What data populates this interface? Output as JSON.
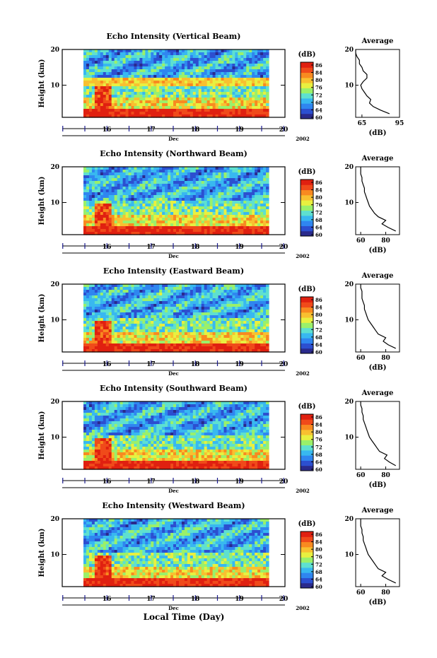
{
  "xlabel": "Local Time (Day)",
  "colorbar": {
    "unit": "(dB)",
    "ticks": [
      "86",
      "84",
      "80",
      "76",
      "72",
      "68",
      "64",
      "60"
    ],
    "colors": [
      "#2a2a8c",
      "#2c4fd0",
      "#2f86f0",
      "#38b8f0",
      "#5ee0d0",
      "#9af06a",
      "#e8f040",
      "#f8c030",
      "#f88a20",
      "#f04a1a",
      "#e02010"
    ]
  },
  "chart_data": [
    {
      "type": "heatmap",
      "title": "Echo Intensity (Vertical Beam)",
      "ylabel": "Height (km)",
      "xticks": [
        "16",
        "17",
        "18",
        "19",
        "20"
      ],
      "month": "Dec",
      "year": "2002",
      "yticks": [
        "10",
        "20"
      ],
      "ylim": [
        1,
        20
      ],
      "clim": [
        60,
        86
      ],
      "colorbar_label": "(dB)",
      "profile": {
        "title": "Average",
        "xlabel": "(dB)",
        "xticks": [
          "65",
          "95"
        ],
        "xlim": [
          60,
          95
        ],
        "yticks": [
          "10",
          "20"
        ],
        "height": [
          2,
          3,
          4,
          5,
          6,
          7,
          8,
          9,
          10,
          11,
          12,
          13,
          14,
          15,
          16,
          17,
          18,
          19,
          20
        ],
        "value": [
          87,
          80,
          74,
          71,
          72,
          69,
          67,
          65,
          64,
          66,
          69,
          69,
          66,
          65,
          63,
          63,
          61,
          60,
          60
        ]
      }
    },
    {
      "type": "heatmap",
      "title": "Echo Intensity (Northward Beam)",
      "ylabel": "Height (km)",
      "xticks": [
        "16",
        "17",
        "18",
        "19",
        "20"
      ],
      "month": "Dec",
      "year": "2002",
      "yticks": [
        "10",
        "20"
      ],
      "ylim": [
        1,
        20
      ],
      "clim": [
        60,
        86
      ],
      "colorbar_label": "(dB)",
      "profile": {
        "title": "Average",
        "xlabel": "(dB)",
        "xticks": [
          "60",
          "80"
        ],
        "xlim": [
          56,
          91
        ],
        "yticks": [
          "10",
          "20"
        ],
        "height": [
          2,
          3,
          4,
          5,
          6,
          7,
          8,
          9,
          10,
          11,
          12,
          13,
          14,
          15,
          16,
          17,
          18,
          19,
          20
        ],
        "value": [
          88,
          82,
          77,
          80,
          74,
          71,
          69,
          67,
          66,
          65,
          64,
          63,
          63,
          62,
          61,
          61,
          60,
          60,
          60
        ]
      }
    },
    {
      "type": "heatmap",
      "title": "Echo Intensity (Eastward Beam)",
      "ylabel": "Height (km)",
      "xticks": [
        "16",
        "17",
        "18",
        "19",
        "20"
      ],
      "month": "Dec",
      "year": "2002",
      "yticks": [
        "10",
        "20"
      ],
      "ylim": [
        1,
        20
      ],
      "clim": [
        60,
        86
      ],
      "colorbar_label": "(dB)",
      "profile": {
        "title": "Average",
        "xlabel": "(dB)",
        "xticks": [
          "60",
          "80"
        ],
        "xlim": [
          56,
          91
        ],
        "yticks": [
          "10",
          "20"
        ],
        "height": [
          2,
          3,
          4,
          5,
          6,
          7,
          8,
          9,
          10,
          11,
          12,
          13,
          14,
          15,
          16,
          17,
          18,
          19,
          20
        ],
        "value": [
          88,
          82,
          78,
          80,
          74,
          72,
          70,
          68,
          66,
          65,
          64,
          63,
          63,
          62,
          61,
          61,
          61,
          60,
          60
        ]
      }
    },
    {
      "type": "heatmap",
      "title": "Echo Intensity (Southward Beam)",
      "ylabel": "Height (km)",
      "xticks": [
        "16",
        "17",
        "18",
        "19",
        "20"
      ],
      "month": "Dec",
      "year": "2002",
      "yticks": [
        "10",
        "20"
      ],
      "ylim": [
        1,
        20
      ],
      "clim": [
        60,
        86
      ],
      "colorbar_label": "(dB)",
      "profile": {
        "title": "Average",
        "xlabel": "(dB)",
        "xticks": [
          "60",
          "80"
        ],
        "xlim": [
          56,
          91
        ],
        "yticks": [
          "10",
          "20"
        ],
        "height": [
          2,
          3,
          4,
          5,
          6,
          7,
          8,
          9,
          10,
          11,
          12,
          13,
          14,
          15,
          16,
          17,
          18,
          19,
          20
        ],
        "value": [
          88,
          83,
          79,
          81,
          75,
          73,
          71,
          69,
          67,
          66,
          65,
          64,
          63,
          62,
          62,
          61,
          61,
          60,
          60
        ]
      }
    },
    {
      "type": "heatmap",
      "title": "Echo Intensity (Westward Beam)",
      "ylabel": "Height (km)",
      "xticks": [
        "16",
        "17",
        "18",
        "19",
        "20"
      ],
      "month": "Dec",
      "year": "2002",
      "yticks": [
        "10",
        "20"
      ],
      "ylim": [
        1,
        20
      ],
      "clim": [
        60,
        86
      ],
      "colorbar_label": "(dB)",
      "profile": {
        "title": "Average",
        "xlabel": "(dB)",
        "xticks": [
          "60",
          "80"
        ],
        "xlim": [
          56,
          91
        ],
        "yticks": [
          "10",
          "20"
        ],
        "height": [
          2,
          3,
          4,
          5,
          6,
          7,
          8,
          9,
          10,
          11,
          12,
          13,
          14,
          15,
          16,
          17,
          18,
          19,
          20
        ],
        "value": [
          88,
          82,
          77,
          80,
          74,
          72,
          70,
          68,
          66,
          65,
          64,
          63,
          62,
          62,
          61,
          61,
          60,
          60,
          60
        ]
      }
    }
  ]
}
